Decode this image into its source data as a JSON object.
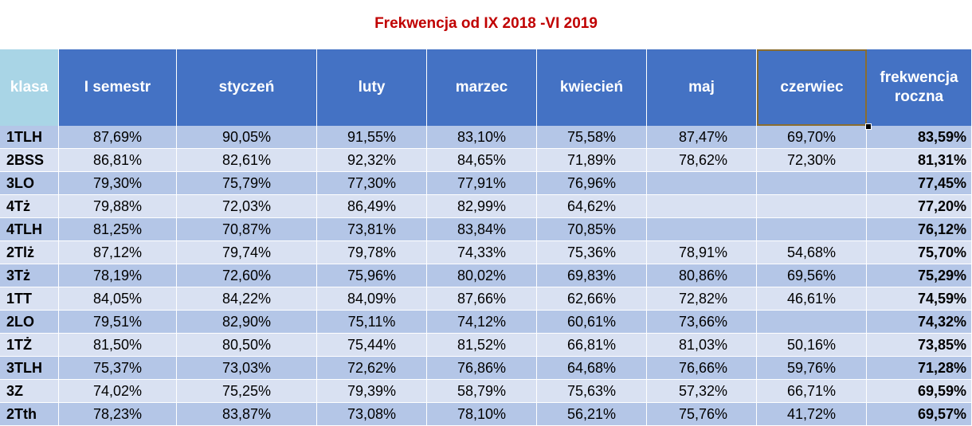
{
  "title": "Frekwencja od IX 2018 -VI 2019",
  "headers": [
    "klasa",
    "I semestr",
    "styczeń",
    "luty",
    "marzec",
    "kwiecień",
    "maj",
    "czerwiec",
    "frekwencja roczna"
  ],
  "rows": [
    [
      "1TLH",
      "87,69%",
      "90,05%",
      "91,55%",
      "83,10%",
      "75,58%",
      "87,47%",
      "69,70%",
      "83,59%"
    ],
    [
      "2BSS",
      "86,81%",
      "82,61%",
      "92,32%",
      "84,65%",
      "71,89%",
      "78,62%",
      "72,30%",
      "81,31%"
    ],
    [
      "3LO",
      "79,30%",
      "75,79%",
      "77,30%",
      "77,91%",
      "76,96%",
      "",
      "",
      "77,45%"
    ],
    [
      "4Tż",
      "79,88%",
      "72,03%",
      "86,49%",
      "82,99%",
      "64,62%",
      "",
      "",
      "77,20%"
    ],
    [
      "4TLH",
      "81,25%",
      "70,87%",
      "73,81%",
      "83,84%",
      "70,85%",
      "",
      "",
      "76,12%"
    ],
    [
      "2Tlż",
      "87,12%",
      "79,74%",
      "79,78%",
      "74,33%",
      "75,36%",
      "78,91%",
      "54,68%",
      "75,70%"
    ],
    [
      "3Tż",
      "78,19%",
      "72,60%",
      "75,96%",
      "80,02%",
      "69,83%",
      "80,86%",
      "69,56%",
      "75,29%"
    ],
    [
      "1TT",
      "84,05%",
      "84,22%",
      "84,09%",
      "87,66%",
      "62,66%",
      "72,82%",
      "46,61%",
      "74,59%"
    ],
    [
      "2LO",
      "79,51%",
      "82,90%",
      "75,11%",
      "74,12%",
      "60,61%",
      "73,66%",
      "",
      "74,32%"
    ],
    [
      "1TŻ",
      "81,50%",
      "80,50%",
      "75,44%",
      "81,52%",
      "66,81%",
      "81,03%",
      "50,16%",
      "73,85%"
    ],
    [
      "3TLH",
      "75,37%",
      "73,03%",
      "72,62%",
      "76,86%",
      "64,68%",
      "76,66%",
      "59,76%",
      "71,28%"
    ],
    [
      "3Z",
      "74,02%",
      "75,25%",
      "79,39%",
      "58,79%",
      "75,63%",
      "57,32%",
      "66,71%",
      "69,59%"
    ],
    [
      "2Tth",
      "78,23%",
      "83,87%",
      "73,08%",
      "78,10%",
      "56,21%",
      "75,76%",
      "41,72%",
      "69,57%"
    ]
  ],
  "colors": {
    "title": "#c00000",
    "header": "#4472c4",
    "header_first": "#a9d5e6",
    "row_dark": "#b4c6e7",
    "row_light": "#d9e1f2"
  }
}
